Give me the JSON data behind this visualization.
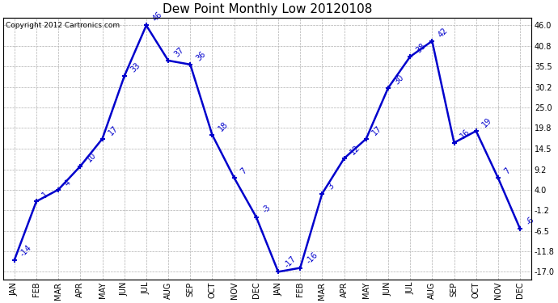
{
  "title": "Dew Point Monthly Low 20120108",
  "copyright": "Copyright 2012 Cartronics.com",
  "months": [
    "JAN",
    "FEB",
    "MAR",
    "APR",
    "MAY",
    "JUN",
    "JUL",
    "AUG",
    "SEP",
    "OCT",
    "NOV",
    "DEC",
    "JAN",
    "FEB",
    "MAR",
    "APR",
    "MAY",
    "JUN",
    "JUL",
    "AUG",
    "SEP",
    "OCT",
    "NOV",
    "DEC"
  ],
  "values": [
    -14,
    1,
    4,
    10,
    17,
    33,
    46,
    37,
    36,
    18,
    7,
    -3,
    -17,
    -16,
    3,
    12,
    17,
    30,
    38,
    42,
    16,
    19,
    7,
    -6
  ],
  "ylim_min": -19.0,
  "ylim_max": 48.0,
  "yticks": [
    -17.0,
    -11.8,
    -6.5,
    -1.2,
    4.0,
    9.2,
    14.5,
    19.8,
    25.0,
    30.2,
    35.5,
    40.8,
    46.0
  ],
  "line_color": "#0000CC",
  "bg_color": "#ffffff",
  "grid_color": "#b0b0b0",
  "title_fontsize": 11,
  "tick_fontsize": 7,
  "annot_fontsize": 7,
  "copyright_fontsize": 6.5
}
